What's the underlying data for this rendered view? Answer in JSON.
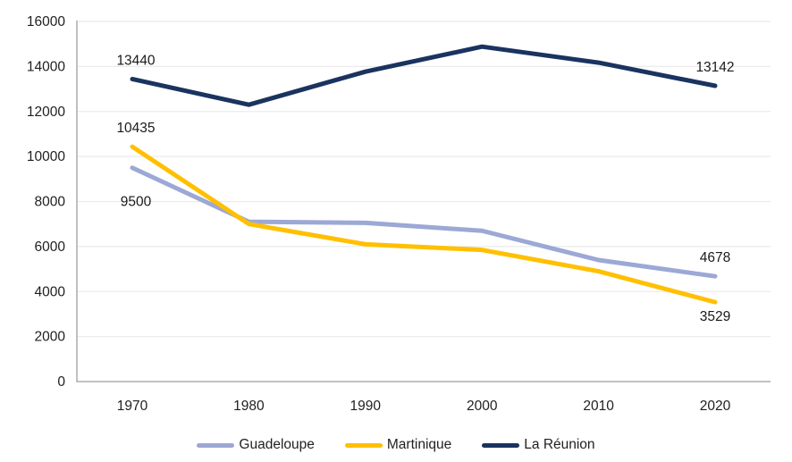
{
  "chart_data": {
    "type": "line",
    "title": "",
    "xlabel": "",
    "ylabel": "",
    "categories": [
      "1970",
      "1980",
      "1990",
      "2000",
      "2010",
      "2020"
    ],
    "series": [
      {
        "name": "Guadeloupe",
        "color": "#9CA8D5",
        "values": [
          9500,
          7100,
          7050,
          6700,
          5400,
          4678
        ]
      },
      {
        "name": "Martinique",
        "color": "#FFC000",
        "values": [
          10435,
          7000,
          6100,
          5850,
          4900,
          3529
        ]
      },
      {
        "name": "La Réunion",
        "color": "#1A335F",
        "values": [
          13440,
          12300,
          13770,
          14880,
          14170,
          13142
        ]
      }
    ],
    "ylim": [
      0,
      16000
    ],
    "ytick_step": 2000,
    "ytick_labels": [
      "0",
      "2000",
      "4000",
      "6000",
      "8000",
      "10000",
      "12000",
      "14000",
      "16000"
    ],
    "grid": "horizontal",
    "legend_position": "bottom",
    "annotations": [
      {
        "series": 2,
        "point": 0,
        "text": "13440",
        "placement": "above"
      },
      {
        "series": 1,
        "point": 0,
        "text": "10435",
        "placement": "above"
      },
      {
        "series": 0,
        "point": 0,
        "text": "9500",
        "placement": "below-far"
      },
      {
        "series": 2,
        "point": 5,
        "text": "13142",
        "placement": "above"
      },
      {
        "series": 0,
        "point": 5,
        "text": "4678",
        "placement": "above"
      },
      {
        "series": 1,
        "point": 5,
        "text": "3529",
        "placement": "below"
      }
    ]
  },
  "colors": {
    "gridline": "#EBEBEB",
    "axis": "#9E9E9E",
    "tick_text": "#1f1f1f",
    "data_label_text": "#1a1a1a",
    "background": "#ffffff"
  }
}
